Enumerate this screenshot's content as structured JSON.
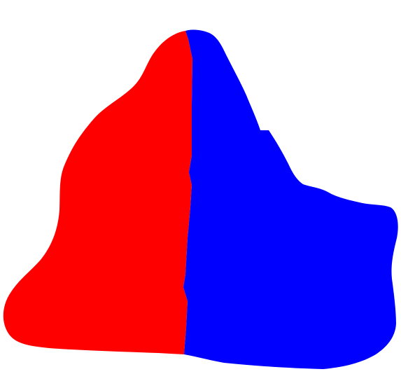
{
  "figure": {
    "background_color": "#ffffff",
    "regions": [
      {
        "id": "left",
        "color": "#ff0000"
      },
      {
        "id": "right",
        "color": "#0000ff"
      }
    ]
  }
}
